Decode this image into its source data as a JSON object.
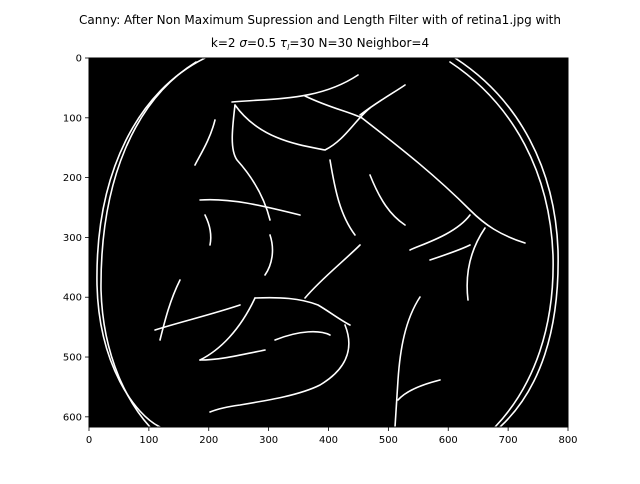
{
  "window": {
    "title_line1": "Canny: After Non Maximum Supression and Length Filter with of retina1.jpg with",
    "title_line2_k": "k=2 ",
    "title_line2_sigma_sym": "σ",
    "title_line2_sigma_val": "=0.5 ",
    "title_line2_tau_sym": "τ",
    "title_line2_tau_sub": "l",
    "title_line2_rest": "=30 N=30 Neighbor=4"
  },
  "chart_data": {
    "type": "image",
    "content": "binary edge map of retina fundus image",
    "x_ticks": [
      0,
      100,
      200,
      300,
      400,
      500,
      600,
      700,
      800
    ],
    "y_ticks": [
      0,
      100,
      200,
      300,
      400,
      500,
      600
    ],
    "xlim": [
      0,
      800
    ],
    "ylim": [
      617,
      0
    ],
    "background_color": "#000000",
    "edge_color": "#ffffff"
  }
}
